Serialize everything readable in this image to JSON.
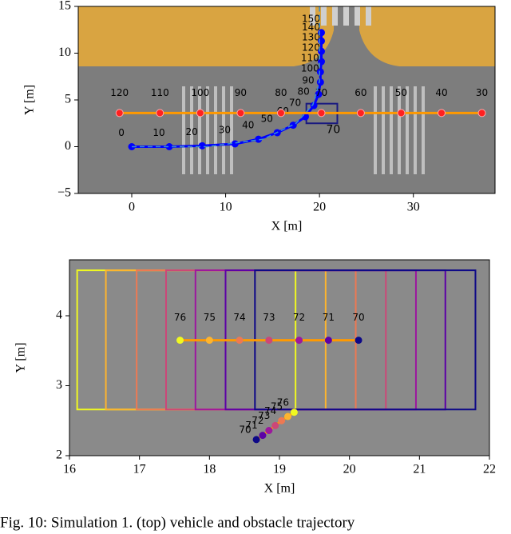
{
  "chart_data": [
    {
      "type": "scatter",
      "xlabel": "X [m]",
      "ylabel": "Y [m]",
      "xlim": [
        -5.7,
        38.7
      ],
      "ylim": [
        -5,
        15
      ],
      "xticks": [
        0,
        10,
        20,
        30
      ],
      "yticks": [
        {
          "value": -5,
          "label": "−5"
        },
        0,
        5,
        10,
        15
      ],
      "series": [
        {
          "color": "#0000ff",
          "style": "solid",
          "x": [
            0,
            4,
            7.5,
            11,
            13.5,
            15.5,
            17.2,
            18.5,
            19.4,
            19.9,
            20.1,
            20.1,
            20.2,
            20.2,
            20.2,
            20.2
          ],
          "values": [
            0,
            0,
            0.1,
            0.3,
            0.8,
            1.5,
            2.3,
            3.2,
            4.4,
            5.6,
            6.9,
            8.0,
            9.1,
            10.2,
            11.3,
            12.2
          ],
          "point_labels": [
            0,
            10,
            20,
            30,
            40,
            50,
            60,
            70,
            80,
            90,
            100,
            110,
            120,
            130,
            140,
            150
          ]
        },
        {
          "color": "#ff9900",
          "point_color": "#ff2020",
          "style": "solid",
          "x": [
            -1.3,
            3.0,
            7.3,
            11.6,
            15.9,
            20.2,
            24.4,
            28.7,
            33.0,
            37.3
          ],
          "values": [
            3.6,
            3.6,
            3.6,
            3.6,
            3.6,
            3.6,
            3.6,
            3.6,
            3.6,
            3.6
          ],
          "point_labels": [
            120,
            110,
            100,
            90,
            80,
            70,
            60,
            50,
            40,
            30
          ]
        },
        {
          "color": "#3a8fd0",
          "style": "dashed",
          "x": [
            0,
            8,
            14,
            17.5,
            19.3,
            20,
            20,
            20
          ],
          "values": [
            0,
            0,
            0.8,
            2.5,
            4.5,
            7,
            11,
            15
          ]
        }
      ],
      "boxes": [
        {
          "x": [
            18.6,
            21.9
          ],
          "y": [
            2.5,
            4.6
          ],
          "color": "#1a1a80",
          "label": "70"
        }
      ]
    },
    {
      "type": "scatter",
      "xlabel": "X [m]",
      "ylabel": "Y [m]",
      "xlim": [
        16,
        22
      ],
      "ylim": [
        2,
        4.8
      ],
      "xticks": [
        16,
        17,
        18,
        19,
        20,
        21,
        22
      ],
      "yticks": [
        2,
        3,
        4
      ],
      "boxes": [
        {
          "x": [
            16.11,
            19.23
          ],
          "y": [
            2.66,
            4.65
          ],
          "color": "#f0f921"
        },
        {
          "x": [
            16.52,
            19.66
          ],
          "y": [
            2.66,
            4.65
          ],
          "color": "#fdb42f"
        },
        {
          "x": [
            16.96,
            20.09
          ],
          "y": [
            2.66,
            4.65
          ],
          "color": "#ed7953"
        },
        {
          "x": [
            17.38,
            20.52
          ],
          "y": [
            2.66,
            4.65
          ],
          "color": "#cc4778"
        },
        {
          "x": [
            17.8,
            20.95
          ],
          "y": [
            2.66,
            4.65
          ],
          "color": "#9c179e"
        },
        {
          "x": [
            18.23,
            21.37
          ],
          "y": [
            2.66,
            4.65
          ],
          "color": "#5c01a6"
        },
        {
          "x": [
            18.65,
            21.8
          ],
          "y": [
            2.66,
            4.65
          ],
          "color": "#0d0887"
        }
      ],
      "series": [
        {
          "color": "#ff9900",
          "style": "solid",
          "x": [
            17.58,
            18.0,
            18.43,
            18.85,
            19.28,
            19.7,
            20.13
          ],
          "values": [
            3.65,
            3.65,
            3.65,
            3.65,
            3.65,
            3.65,
            3.65
          ],
          "point_labels": [
            76,
            75,
            74,
            73,
            72,
            71,
            70
          ],
          "point_colors": [
            "#f0f921",
            "#fdb42f",
            "#ed7953",
            "#cc4778",
            "#9c179e",
            "#5c01a6",
            "#0d0887"
          ]
        },
        {
          "color": "#ff9900",
          "style": "solid",
          "x": [
            18.67,
            18.76,
            18.85,
            18.94,
            19.03,
            19.12,
            19.21
          ],
          "values": [
            2.23,
            2.29,
            2.36,
            2.43,
            2.5,
            2.56,
            2.62
          ],
          "point_labels": [
            70,
            71,
            72,
            73,
            74,
            75,
            76
          ],
          "point_colors": [
            "#0d0887",
            "#5c01a6",
            "#9c179e",
            "#cc4778",
            "#ed7953",
            "#fdb42f",
            "#f0f921"
          ]
        }
      ]
    }
  ],
  "caption": "Fig. 10: Simulation 1. (top) vehicle and obstacle trajectory"
}
